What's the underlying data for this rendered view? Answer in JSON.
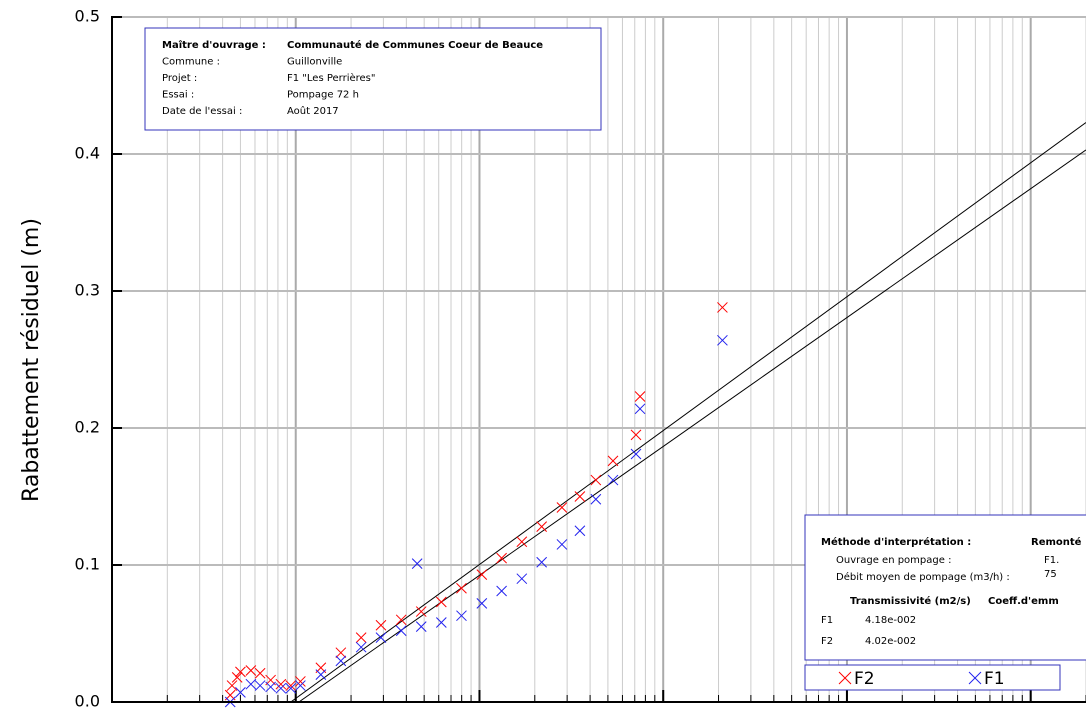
{
  "chart_data": {
    "type": "scatter",
    "y_label": "Rabattement résiduel (m)",
    "xscale": "log",
    "xlim": [
      1,
      200000
    ],
    "ylim": [
      0,
      0.5
    ],
    "yticks": [
      {
        "value": 0,
        "label": "0.0"
      },
      0.1,
      0.2,
      0.3,
      0.4,
      0.5
    ],
    "grid": true,
    "legend": "bottom right",
    "series": [
      {
        "name": "F2",
        "color": "#ff0000",
        "x": [
          4.4,
          4.5,
          4.8,
          5.0,
          5.7,
          6.4,
          7.3,
          8.3,
          9.4,
          10.6,
          13.7,
          17.6,
          22.7,
          29.1,
          37.5,
          48.2,
          62,
          79.8,
          103,
          132,
          170,
          218,
          281,
          352,
          430,
          533,
          711,
          748,
          2100
        ],
        "values": [
          0.005,
          0.012,
          0.018,
          0.022,
          0.023,
          0.021,
          0.016,
          0.013,
          0.012,
          0.015,
          0.025,
          0.036,
          0.047,
          0.056,
          0.06,
          0.066,
          0.073,
          0.083,
          0.093,
          0.105,
          0.117,
          0.128,
          0.142,
          0.15,
          0.162,
          0.176,
          0.195,
          0.223,
          0.288
        ]
      },
      {
        "name": "F1",
        "color": "#2222ee",
        "x": [
          4.4,
          5.0,
          5.7,
          6.4,
          7.3,
          8.3,
          9.4,
          10.6,
          13.7,
          17.6,
          22.7,
          29.1,
          37.5,
          45.8,
          48.2,
          62,
          79.8,
          103,
          132,
          170,
          218,
          281,
          352,
          430,
          533,
          711,
          748,
          2100
        ],
        "values": [
          0.0,
          0.007,
          0.013,
          0.012,
          0.011,
          0.01,
          0.01,
          0.012,
          0.02,
          0.03,
          0.04,
          0.047,
          0.052,
          0.101,
          0.055,
          0.058,
          0.063,
          0.072,
          0.081,
          0.09,
          0.102,
          0.115,
          0.125,
          0.148,
          0.162,
          0.181,
          0.214,
          0.264
        ]
      }
    ],
    "fit_lines": [
      {
        "color": "#000000",
        "x": [
          9.4,
          200000
        ],
        "values": [
          0,
          0.423
        ]
      },
      {
        "color": "#000000",
        "x": [
          10.4,
          200000
        ],
        "values": [
          0,
          0.403
        ]
      }
    ],
    "info_box": {
      "rows": [
        [
          "Maître d'ouvrage :",
          "Communauté de Communes Coeur de Beauce"
        ],
        [
          "Commune :",
          "Guillonville"
        ],
        [
          "Projet :",
          "F1 \"Les Perrières\""
        ],
        [
          "Essai :",
          "Pompage 72 h"
        ],
        [
          "Date de l'essai :",
          "Août 2017"
        ]
      ]
    },
    "interpretation_box": {
      "method_label": "Méthode d'interprétation :",
      "method": "Remonté",
      "rows": [
        [
          "Ouvrage en pompage :",
          "F1."
        ],
        [
          "Débit moyen de pompage (m3/h) :",
          "75"
        ]
      ],
      "header": [
        "Transmissivité (m2/s)",
        "Coeff.d'emm"
      ],
      "results": [
        [
          "F1",
          "4.18e-002"
        ],
        [
          "F2",
          "4.02e-002"
        ]
      ]
    }
  }
}
